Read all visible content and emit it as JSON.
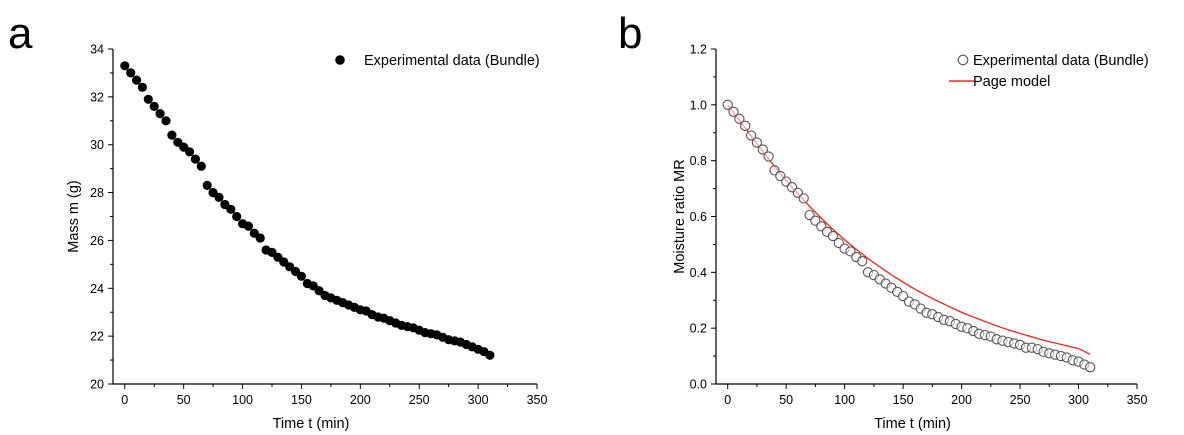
{
  "chart_data": [
    {
      "panel_label": "a",
      "type": "scatter",
      "xlabel": "Time t (min)",
      "ylabel": "Mass m (g)",
      "xlim": [
        -10,
        350
      ],
      "ylim": [
        20,
        34
      ],
      "xticks": [
        0,
        50,
        100,
        150,
        200,
        250,
        300,
        350
      ],
      "yticks": [
        20,
        22,
        24,
        26,
        28,
        30,
        32,
        34
      ],
      "grid": false,
      "legend_position": "top-right",
      "series": [
        {
          "name": "Experimental data (Bundle)",
          "marker": "filled-circle",
          "color": "#000000",
          "x": [
            0,
            5,
            10,
            15,
            20,
            25,
            30,
            35,
            40,
            45,
            50,
            55,
            60,
            65,
            70,
            75,
            80,
            85,
            90,
            95,
            100,
            105,
            110,
            115,
            120,
            125,
            130,
            135,
            140,
            145,
            150,
            155,
            160,
            165,
            170,
            175,
            180,
            185,
            190,
            195,
            200,
            205,
            210,
            215,
            220,
            225,
            230,
            235,
            240,
            245,
            250,
            255,
            260,
            265,
            270,
            275,
            280,
            285,
            290,
            295,
            300,
            305,
            310
          ],
          "y": [
            33.3,
            33.0,
            32.7,
            32.4,
            31.9,
            31.6,
            31.3,
            31.0,
            30.4,
            30.1,
            29.9,
            29.7,
            29.4,
            29.1,
            28.3,
            28.0,
            27.8,
            27.5,
            27.3,
            27.0,
            26.7,
            26.6,
            26.3,
            26.1,
            25.6,
            25.5,
            25.3,
            25.1,
            24.9,
            24.7,
            24.5,
            24.2,
            24.1,
            23.9,
            23.7,
            23.6,
            23.5,
            23.4,
            23.3,
            23.2,
            23.1,
            23.05,
            22.9,
            22.8,
            22.75,
            22.65,
            22.55,
            22.45,
            22.4,
            22.35,
            22.25,
            22.15,
            22.1,
            22.05,
            21.95,
            21.85,
            21.8,
            21.75,
            21.65,
            21.55,
            21.45,
            21.35,
            21.2
          ]
        }
      ]
    },
    {
      "panel_label": "b",
      "type": "scatter",
      "xlabel": "Time t (min)",
      "ylabel": "Moisture ratio MR",
      "xlim": [
        -10,
        350
      ],
      "ylim": [
        0.0,
        1.2
      ],
      "xticks": [
        0,
        50,
        100,
        150,
        200,
        250,
        300,
        350
      ],
      "yticks": [
        0.0,
        0.2,
        0.4,
        0.6,
        0.8,
        1.0,
        1.2
      ],
      "ytick_labels": [
        "0.0",
        "0.2",
        "0.4",
        "0.6",
        "0.8",
        "1.0",
        "1.2"
      ],
      "grid": false,
      "legend_position": "top-right",
      "series": [
        {
          "name": "Experimental data (Bundle)",
          "marker": "open-circle",
          "color": "#555555",
          "x": [
            0,
            5,
            10,
            15,
            20,
            25,
            30,
            35,
            40,
            45,
            50,
            55,
            60,
            65,
            70,
            75,
            80,
            85,
            90,
            95,
            100,
            105,
            110,
            115,
            120,
            125,
            130,
            135,
            140,
            145,
            150,
            155,
            160,
            165,
            170,
            175,
            180,
            185,
            190,
            195,
            200,
            205,
            210,
            215,
            220,
            225,
            230,
            235,
            240,
            245,
            250,
            255,
            260,
            265,
            270,
            275,
            280,
            285,
            290,
            295,
            300,
            305,
            310
          ],
          "y": [
            1.0,
            0.975,
            0.95,
            0.925,
            0.89,
            0.865,
            0.84,
            0.815,
            0.765,
            0.745,
            0.725,
            0.705,
            0.685,
            0.665,
            0.605,
            0.585,
            0.565,
            0.545,
            0.53,
            0.505,
            0.485,
            0.475,
            0.455,
            0.44,
            0.4,
            0.39,
            0.375,
            0.36,
            0.345,
            0.33,
            0.315,
            0.295,
            0.285,
            0.27,
            0.255,
            0.25,
            0.24,
            0.23,
            0.225,
            0.215,
            0.205,
            0.2,
            0.19,
            0.18,
            0.175,
            0.17,
            0.16,
            0.155,
            0.15,
            0.145,
            0.14,
            0.13,
            0.13,
            0.125,
            0.115,
            0.11,
            0.105,
            0.1,
            0.095,
            0.085,
            0.08,
            0.07,
            0.06
          ]
        },
        {
          "name": "Page model",
          "line": "solid",
          "color": "#e8302f",
          "x": [
            0,
            10,
            20,
            30,
            40,
            50,
            60,
            70,
            80,
            90,
            100,
            110,
            120,
            130,
            140,
            150,
            160,
            170,
            180,
            190,
            200,
            210,
            220,
            230,
            240,
            250,
            260,
            270,
            280,
            290,
            300,
            310
          ],
          "y": [
            1.0,
            0.945,
            0.888,
            0.833,
            0.78,
            0.729,
            0.681,
            0.636,
            0.594,
            0.554,
            0.517,
            0.482,
            0.45,
            0.42,
            0.391,
            0.365,
            0.34,
            0.317,
            0.296,
            0.276,
            0.257,
            0.24,
            0.224,
            0.208,
            0.194,
            0.181,
            0.169,
            0.157,
            0.147,
            0.137,
            0.127,
            0.106
          ]
        }
      ]
    }
  ]
}
